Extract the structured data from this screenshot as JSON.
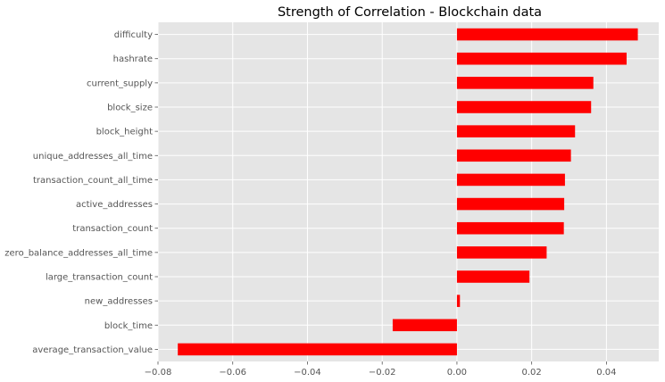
{
  "chart_data": {
    "type": "bar",
    "orientation": "horizontal",
    "title": "Strength of Correlation - Blockchain data",
    "xlabel": "",
    "ylabel": "",
    "xlim": [
      -0.08,
      0.054
    ],
    "xticks": [
      -0.08,
      -0.06,
      -0.04,
      -0.02,
      0.0,
      0.02,
      0.04
    ],
    "xtick_labels": [
      "−0.08",
      "−0.06",
      "−0.04",
      "−0.02",
      "0.00",
      "0.02",
      "0.04"
    ],
    "grid": true,
    "background": "#e5e5e5",
    "bar_color": "#ff0000",
    "categories": [
      "difficulty",
      "hashrate",
      "current_supply",
      "block_size",
      "block_height",
      "unique_addresses_all_time",
      "transaction_count_all_time",
      "active_addresses",
      "transaction_count",
      "zero_balance_addresses_all_time",
      "large_transaction_count",
      "new_addresses",
      "block_time",
      "average_transaction_value"
    ],
    "values": [
      0.0484,
      0.0454,
      0.0365,
      0.0359,
      0.0316,
      0.0305,
      0.0289,
      0.0287,
      0.0286,
      0.024,
      0.0194,
      0.0008,
      -0.0172,
      -0.0747
    ]
  }
}
